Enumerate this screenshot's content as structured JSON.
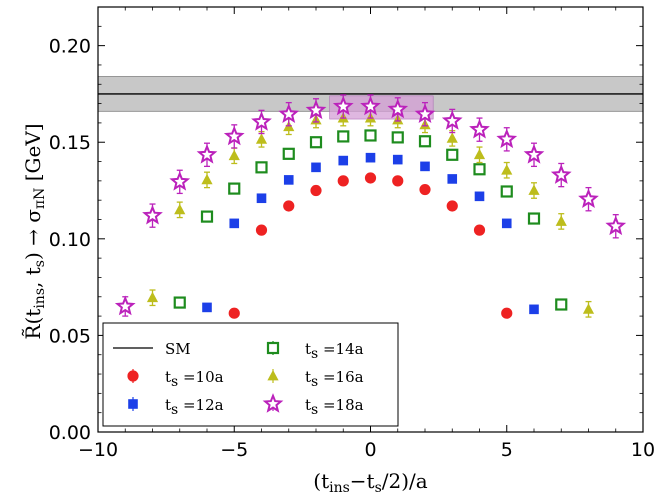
{
  "chart_data": {
    "type": "scatter",
    "xlabel": "(t_ins−t_s/2)/a",
    "ylabel": "R̃(t_ins, t_s) → σ_πN [GeV]",
    "xlim": [
      -10,
      10
    ],
    "ylim": [
      0.0,
      0.22
    ],
    "xticks": [
      -10,
      -5,
      0,
      5,
      10
    ],
    "xtick_labels": [
      "−10",
      "−5",
      "0",
      "5",
      "10"
    ],
    "yticks": [
      0.0,
      0.05,
      0.1,
      0.15,
      0.2
    ],
    "ytick_labels": [
      "0.00",
      "0.05",
      "0.10",
      "0.15",
      "0.20"
    ],
    "grid": false,
    "legend_position": "bottom-left",
    "reference": {
      "name": "SM",
      "value": 0.175,
      "band": [
        0.166,
        0.184
      ],
      "color": "#000000",
      "band_color": "#c8c8c8"
    },
    "fit_band": {
      "x": [
        -1.5,
        2.3
      ],
      "y": [
        0.162,
        0.174
      ],
      "color": "#d49fd6"
    },
    "series": [
      {
        "name": "t_s =10a",
        "marker": "circle",
        "color": "#ee2222",
        "x": [
          -5,
          -4,
          -3,
          -2,
          -1,
          0,
          1,
          2,
          3,
          4,
          5
        ],
        "y": [
          0.0615,
          0.1045,
          0.117,
          0.125,
          0.13,
          0.1315,
          0.13,
          0.1255,
          0.117,
          0.1045,
          0.0615
        ],
        "err": [
          0.001,
          0.001,
          0.001,
          0.001,
          0.001,
          0.001,
          0.001,
          0.001,
          0.001,
          0.001,
          0.001
        ]
      },
      {
        "name": "t_s =12a",
        "marker": "square",
        "color": "#1c3fe8",
        "x": [
          -6,
          -5,
          -4,
          -3,
          -2,
          -1,
          0,
          1,
          2,
          3,
          4,
          5,
          6
        ],
        "y": [
          0.0645,
          0.108,
          0.121,
          0.1305,
          0.137,
          0.1405,
          0.142,
          0.141,
          0.1375,
          0.131,
          0.122,
          0.108,
          0.0635
        ],
        "err": [
          0.0015,
          0.0015,
          0.0015,
          0.0015,
          0.0015,
          0.0015,
          0.0015,
          0.0015,
          0.0015,
          0.0015,
          0.0015,
          0.0015,
          0.0015
        ]
      },
      {
        "name": "t_s =14a",
        "marker": "square-open",
        "color": "#1e8c1e",
        "x": [
          -7,
          -6,
          -5,
          -4,
          -3,
          -2,
          -1,
          0,
          1,
          2,
          3,
          4,
          5,
          6,
          7
        ],
        "y": [
          0.067,
          0.1115,
          0.126,
          0.137,
          0.144,
          0.15,
          0.153,
          0.1535,
          0.1525,
          0.1505,
          0.1435,
          0.136,
          0.1245,
          0.1105,
          0.066
        ],
        "err": [
          0.002,
          0.002,
          0.002,
          0.002,
          0.002,
          0.002,
          0.002,
          0.002,
          0.002,
          0.002,
          0.002,
          0.002,
          0.002,
          0.002,
          0.002
        ]
      },
      {
        "name": "t_s =16a",
        "marker": "triangle",
        "color": "#bdbd1c",
        "x": [
          -8,
          -7,
          -6,
          -5,
          -4,
          -3,
          -2,
          -1,
          0,
          1,
          2,
          3,
          4,
          5,
          6,
          7,
          8
        ],
        "y": [
          0.0695,
          0.115,
          0.1305,
          0.143,
          0.1515,
          0.158,
          0.1615,
          0.1625,
          0.1625,
          0.1615,
          0.159,
          0.152,
          0.1435,
          0.1355,
          0.125,
          0.109,
          0.0635
        ],
        "err": [
          0.004,
          0.004,
          0.004,
          0.004,
          0.004,
          0.004,
          0.004,
          0.004,
          0.004,
          0.004,
          0.004,
          0.004,
          0.004,
          0.004,
          0.004,
          0.004,
          0.004
        ]
      },
      {
        "name": "t_s =18a",
        "marker": "star-open",
        "color": "#bb22bb",
        "x": [
          -9,
          -8,
          -7,
          -6,
          -5,
          -4,
          -3,
          -2,
          -1,
          0,
          1,
          2,
          3,
          4,
          5,
          6,
          7,
          8,
          9
        ],
        "y": [
          0.065,
          0.112,
          0.1295,
          0.1435,
          0.153,
          0.1605,
          0.1645,
          0.1665,
          0.1685,
          0.1685,
          0.167,
          0.1645,
          0.161,
          0.1565,
          0.1515,
          0.1435,
          0.133,
          0.1205,
          0.1065
        ],
        "err": [
          0.005,
          0.006,
          0.006,
          0.006,
          0.006,
          0.006,
          0.006,
          0.006,
          0.006,
          0.006,
          0.006,
          0.006,
          0.006,
          0.006,
          0.006,
          0.006,
          0.006,
          0.006,
          0.006
        ]
      }
    ]
  }
}
